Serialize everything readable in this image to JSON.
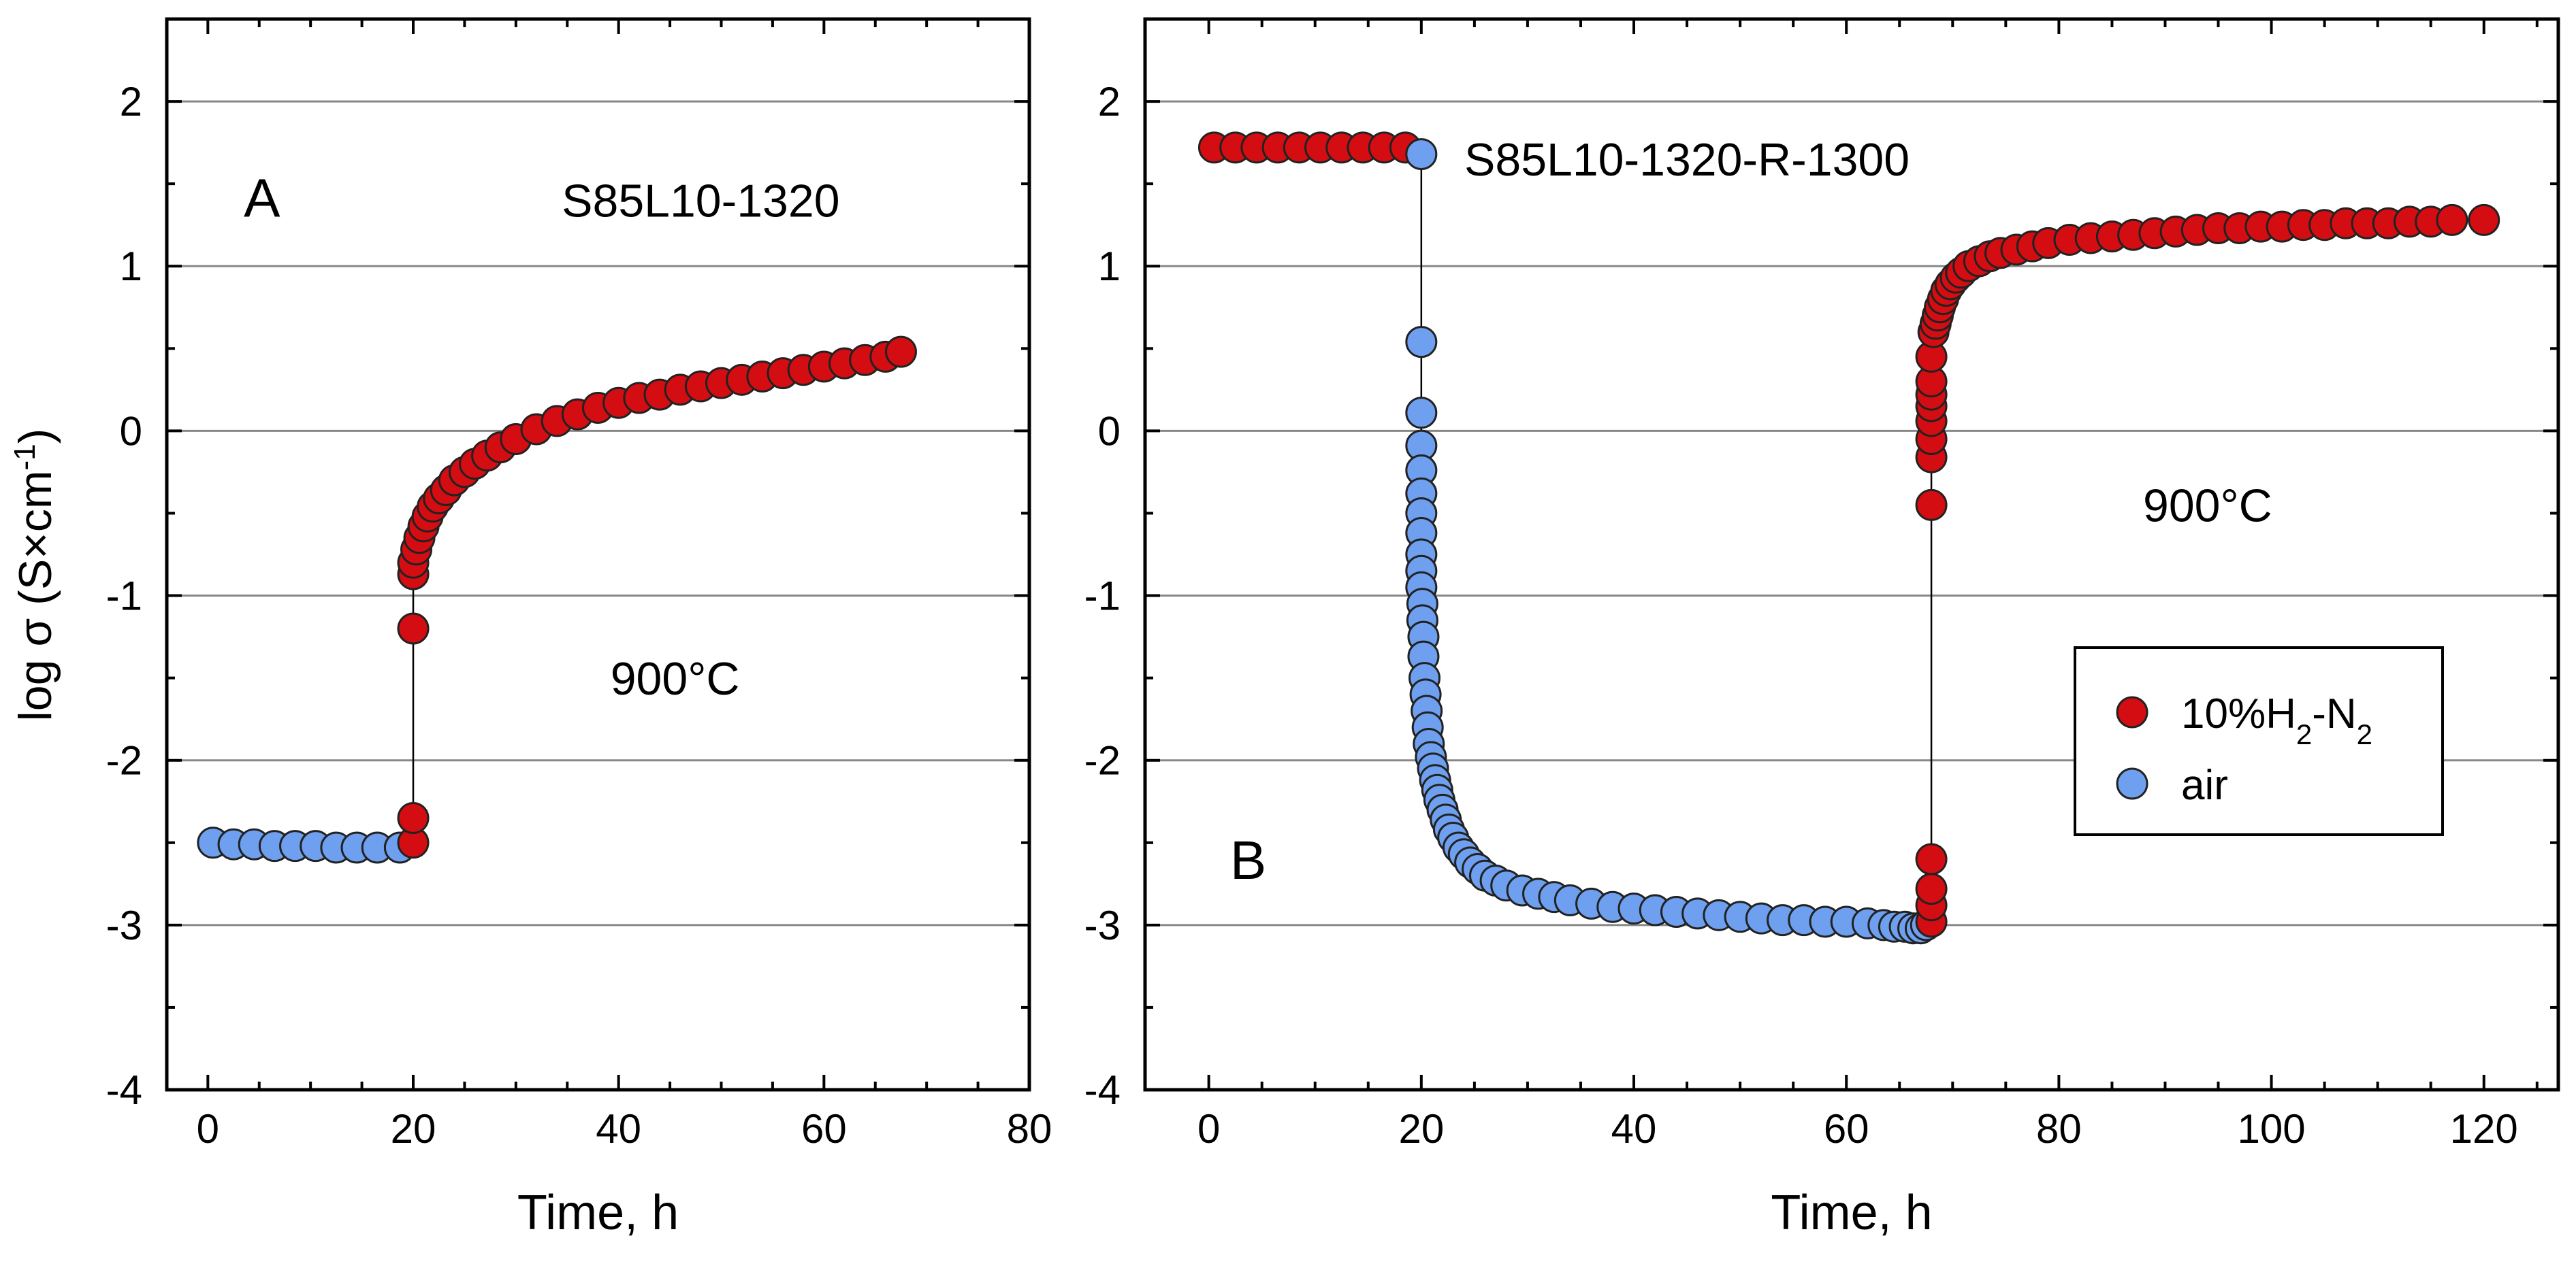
{
  "figure": {
    "y_axis_label": "log σ (S×cm",
    "y_axis_label_sup": "-1",
    "y_axis_label_close": ")"
  },
  "colors": {
    "h2": "#d40d12",
    "air": "#6fa0f0",
    "marker_edge": "#222222",
    "grid": "#888888"
  },
  "chart_data": [
    {
      "type": "scatter",
      "panel_letter": "A",
      "sample_label": "S85L10-1320",
      "temperature_label": "900°C",
      "xlabel": "Time, h",
      "ylabel": "log σ (S×cm-1)",
      "xlim": [
        -4,
        80
      ],
      "ylim": [
        -4,
        2.5
      ],
      "xticks": [
        0,
        20,
        40,
        60,
        80
      ],
      "yticks": [
        -4,
        -3,
        -2,
        -1,
        0,
        1,
        2
      ],
      "xtick_labels": [
        "0",
        "20",
        "40",
        "60",
        "80"
      ],
      "ytick_labels": [
        "-4",
        "-3",
        "-2",
        "-1",
        "0",
        "1",
        "2"
      ],
      "grid": true,
      "connect_line": true,
      "series": [
        {
          "key": "air",
          "x": [
            0.5,
            2.5,
            4.5,
            6.5,
            8.5,
            10.5,
            12.5,
            14.5,
            16.5,
            18.7
          ],
          "y": [
            -2.5,
            -2.51,
            -2.51,
            -2.52,
            -2.52,
            -2.52,
            -2.53,
            -2.53,
            -2.53,
            -2.53
          ]
        },
        {
          "key": "h2",
          "x": [
            20,
            20,
            20,
            20,
            20,
            20.3,
            20.6,
            21.0,
            21.4,
            21.9,
            22.5,
            23.2,
            24.0,
            25.0,
            26.0,
            27.2,
            28.5,
            30.0,
            32.0,
            34.0,
            36.0,
            38.0,
            40.0,
            42.0,
            44.0,
            46.0,
            48.0,
            50.0,
            52.0,
            54.0,
            56.0,
            58.0,
            60.0,
            62.0,
            64.0,
            66.0,
            67.5
          ],
          "y": [
            -2.5,
            -2.35,
            -1.2,
            -0.87,
            -0.8,
            -0.72,
            -0.65,
            -0.58,
            -0.52,
            -0.46,
            -0.41,
            -0.36,
            -0.3,
            -0.25,
            -0.2,
            -0.15,
            -0.1,
            -0.05,
            0.01,
            0.06,
            0.1,
            0.14,
            0.17,
            0.2,
            0.22,
            0.25,
            0.27,
            0.29,
            0.31,
            0.33,
            0.35,
            0.37,
            0.39,
            0.41,
            0.43,
            0.45,
            0.48
          ]
        }
      ]
    },
    {
      "type": "scatter",
      "panel_letter": "B",
      "sample_label": "S85L10-1320-R-1300",
      "temperature_label": "900°C",
      "xlabel": "Time, h",
      "ylabel": "",
      "xlim": [
        -6,
        127
      ],
      "ylim": [
        -4,
        2.5
      ],
      "xticks": [
        0,
        20,
        40,
        60,
        80,
        100,
        120
      ],
      "yticks": [
        -4,
        -3,
        -2,
        -1,
        0,
        1,
        2
      ],
      "xtick_labels": [
        "0",
        "20",
        "40",
        "60",
        "80",
        "100",
        "120"
      ],
      "ytick_labels": [
        "-4",
        "-3",
        "-2",
        "-1",
        "0",
        "1",
        "2"
      ],
      "grid": true,
      "connect_line": true,
      "legend": {
        "position": "right",
        "entries": [
          {
            "key": "h2",
            "label_main": "10%H",
            "label_sub": "2",
            "label_after": "-N",
            "label_sub2": "2"
          },
          {
            "key": "air",
            "label_main": "air"
          }
        ]
      },
      "series": [
        {
          "key": "h2",
          "x": [
            0.5,
            2.5,
            4.5,
            6.5,
            8.5,
            10.5,
            12.5,
            14.5,
            16.5,
            18.5
          ],
          "y": [
            1.72,
            1.72,
            1.72,
            1.72,
            1.72,
            1.72,
            1.72,
            1.72,
            1.72,
            1.72
          ]
        },
        {
          "key": "air",
          "x": [
            20,
            20,
            20,
            20,
            20,
            20,
            20,
            20,
            20,
            20,
            20,
            20.1,
            20.1,
            20.2,
            20.2,
            20.3,
            20.4,
            20.5,
            20.6,
            20.7,
            20.9,
            21.1,
            21.3,
            21.5,
            21.7,
            22.0,
            22.3,
            22.6,
            23.0,
            23.5,
            24.0,
            24.6,
            25.3,
            26.0,
            27.0,
            28.0,
            29.5,
            31.0,
            32.5,
            34.0,
            36.0,
            38.0,
            40.0,
            42.0,
            44.0,
            46.0,
            48.0,
            50.0,
            52.0,
            54.0,
            56.0,
            58.0,
            60.0,
            62.0,
            63.5,
            64.5,
            65.5,
            66.3,
            67.0,
            67.5
          ],
          "y": [
            1.68,
            0.54,
            0.11,
            -0.09,
            -0.24,
            -0.38,
            -0.5,
            -0.62,
            -0.75,
            -0.85,
            -0.95,
            -1.05,
            -1.15,
            -1.25,
            -1.37,
            -1.5,
            -1.6,
            -1.7,
            -1.8,
            -1.9,
            -1.98,
            -2.05,
            -2.12,
            -2.18,
            -2.24,
            -2.3,
            -2.36,
            -2.42,
            -2.47,
            -2.53,
            -2.57,
            -2.62,
            -2.66,
            -2.7,
            -2.73,
            -2.76,
            -2.79,
            -2.81,
            -2.83,
            -2.85,
            -2.87,
            -2.89,
            -2.9,
            -2.91,
            -2.92,
            -2.93,
            -2.94,
            -2.95,
            -2.96,
            -2.97,
            -2.97,
            -2.98,
            -2.98,
            -2.99,
            -3.0,
            -3.01,
            -3.01,
            -3.02,
            -3.02,
            -3.0
          ]
        },
        {
          "key": "h2",
          "x": [
            68,
            68,
            68,
            68,
            68,
            68,
            68,
            68,
            68,
            68,
            68,
            68,
            68.2,
            68.4,
            68.6,
            68.8,
            69.1,
            69.4,
            69.8,
            70.3,
            70.8,
            71.5,
            72.5,
            73.5,
            74.5,
            76.0,
            77.5,
            79.0,
            81.0,
            83.0,
            85.0,
            87.0,
            89.0,
            91.0,
            93.0,
            95.0,
            97.0,
            99.0,
            101.0,
            103.0,
            105.0,
            107.0,
            109.0,
            111.0,
            113.0,
            115.0,
            117.0,
            120.0
          ],
          "y": [
            -2.98,
            -2.88,
            -2.78,
            -2.6,
            -0.45,
            -0.16,
            -0.05,
            0.06,
            0.15,
            0.22,
            0.3,
            0.45,
            0.6,
            0.65,
            0.7,
            0.75,
            0.8,
            0.85,
            0.89,
            0.93,
            0.96,
            1.0,
            1.03,
            1.06,
            1.08,
            1.1,
            1.12,
            1.14,
            1.16,
            1.17,
            1.18,
            1.19,
            1.2,
            1.21,
            1.22,
            1.23,
            1.23,
            1.24,
            1.24,
            1.25,
            1.25,
            1.26,
            1.26,
            1.26,
            1.27,
            1.27,
            1.28,
            1.28
          ]
        }
      ]
    }
  ]
}
